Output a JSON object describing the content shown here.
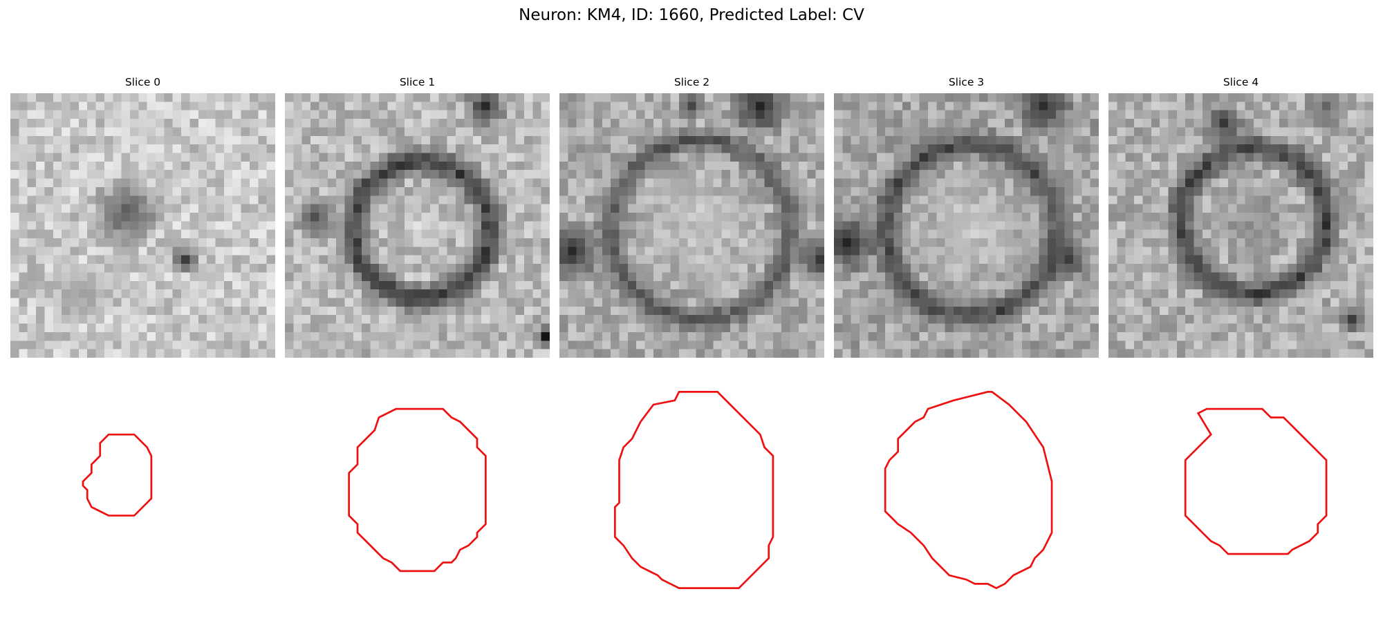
{
  "figure": {
    "title": "Neuron: KM4, ID: 1660, Predicted Label: CV",
    "contour_color": "#ee1111"
  },
  "slices": [
    {
      "title": "Slice 0"
    },
    {
      "title": "Slice 1"
    },
    {
      "title": "Slice 2"
    },
    {
      "title": "Slice 3"
    },
    {
      "title": "Slice 4"
    }
  ]
}
